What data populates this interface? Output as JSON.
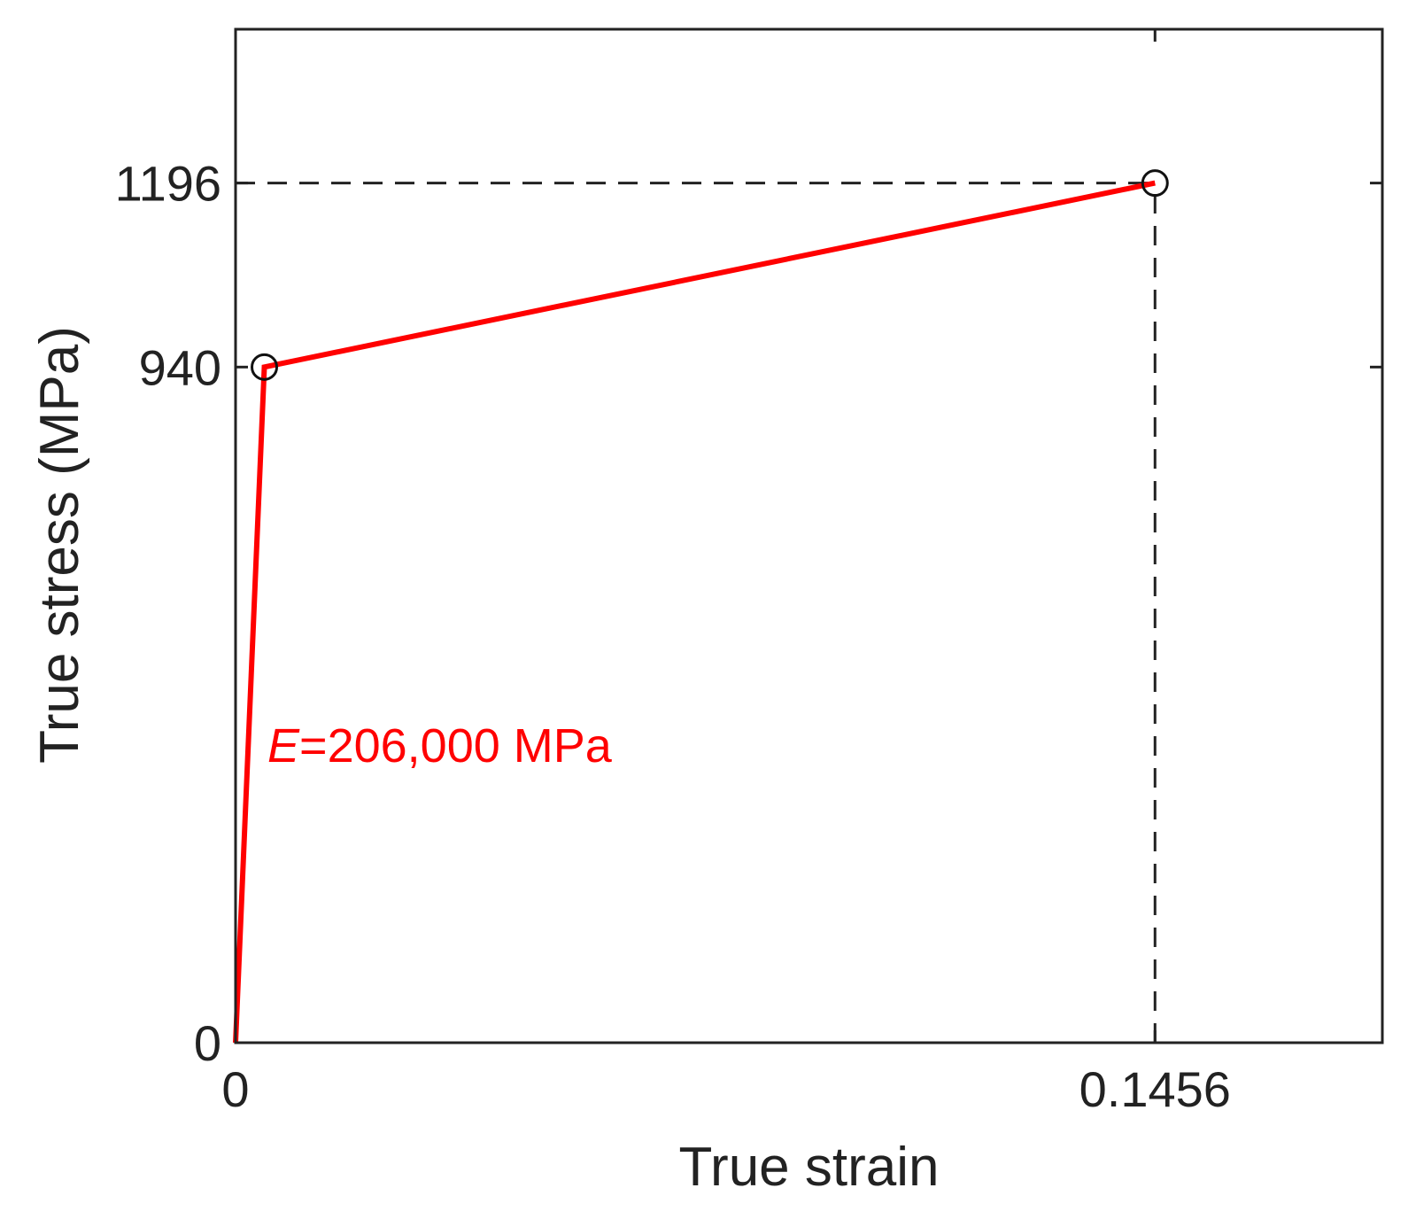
{
  "chart_data": {
    "type": "line",
    "xlabel": "True strain",
    "ylabel": "True stress (MPa)",
    "xlim": [
      0,
      0.1816
    ],
    "ylim": [
      0,
      1410
    ],
    "xticks": [
      {
        "value": 0,
        "label": "0"
      },
      {
        "value": 0.1456,
        "label": "0.1456"
      }
    ],
    "yticks": [
      {
        "value": 0,
        "label": "0"
      },
      {
        "value": 940,
        "label": "940"
      },
      {
        "value": 1196,
        "label": "1196"
      }
    ],
    "grid": false,
    "series": [
      {
        "color": "#ff0000",
        "x": [
          0,
          0.00456,
          0.1456
        ],
        "y": [
          0,
          940,
          1196
        ]
      }
    ],
    "markers": [
      {
        "x": 0.00456,
        "y": 940
      },
      {
        "x": 0.1456,
        "y": 1196
      }
    ],
    "reference_lines": [
      {
        "orientation": "horizontal",
        "y": 1196,
        "from_x": 0.1456
      },
      {
        "orientation": "vertical",
        "x": 0.1456,
        "from_y": 1196
      }
    ],
    "annotation": {
      "symbol": "E",
      "rest": "=206,000 MPa",
      "color": "#ff0000"
    }
  }
}
